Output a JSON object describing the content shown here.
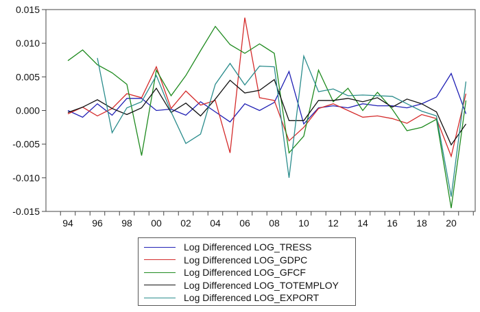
{
  "chart_data": {
    "type": "line",
    "x": [
      1994,
      1995,
      1996,
      1997,
      1998,
      1999,
      2000,
      2001,
      2002,
      2003,
      2004,
      2005,
      2006,
      2007,
      2008,
      2009,
      2010,
      2011,
      2012,
      2013,
      2014,
      2015,
      2016,
      2017,
      2018,
      2019,
      2020,
      2021
    ],
    "xtick_labels": [
      "94",
      "96",
      "98",
      "00",
      "02",
      "04",
      "06",
      "08",
      "10",
      "12",
      "14",
      "16",
      "18",
      "20"
    ],
    "xtick_years": [
      1994,
      1996,
      1998,
      2000,
      2002,
      2004,
      2006,
      2008,
      2010,
      2012,
      2014,
      2016,
      2018,
      2020
    ],
    "ylim": [
      -0.015,
      0.015
    ],
    "yticks": [
      0.015,
      0.01,
      0.005,
      0.0,
      -0.005,
      -0.01,
      -0.015
    ],
    "ytick_labels": [
      "0.015",
      "0.010",
      "0.005",
      "0.000",
      "-0.005",
      "-0.010",
      "-0.015"
    ],
    "grid": false,
    "legend_placement": "bottom",
    "series": [
      {
        "name": "Log Differenced LOG_TRESS",
        "color": "#1f1fb4",
        "values": [
          0.0,
          -0.001,
          0.001,
          -0.0007,
          0.0018,
          0.0018,
          0.0,
          0.0002,
          -0.0007,
          0.0013,
          -0.0002,
          -0.0017,
          0.001,
          0.0,
          0.0012,
          0.0058,
          -0.002,
          0.0004,
          0.0007,
          0.0004,
          0.001,
          0.0007,
          0.0007,
          0.0004,
          0.001,
          0.002,
          0.0055,
          -0.0005
        ]
      },
      {
        "name": "Log Differenced LOG_GDPC",
        "color": "#d42a2a",
        "values": [
          -0.0005,
          0.0005,
          -0.0008,
          0.0003,
          0.0025,
          0.0019,
          0.0065,
          0.0003,
          0.0029,
          0.0008,
          0.0015,
          -0.0063,
          0.0138,
          0.0019,
          0.0015,
          -0.0045,
          -0.0025,
          0.0003,
          0.001,
          0.0,
          -0.001,
          -0.0008,
          -0.0012,
          -0.0019,
          -0.0006,
          -0.0012,
          -0.0068,
          0.0025
        ]
      },
      {
        "name": "Log Differenced LOG_GFCF",
        "color": "#1e8a1e",
        "values": [
          0.0074,
          0.009,
          0.0068,
          0.0056,
          0.0039,
          -0.0067,
          0.006,
          0.0022,
          0.0052,
          0.0089,
          0.0125,
          0.0098,
          0.0085,
          0.0099,
          0.0085,
          -0.0063,
          -0.0038,
          0.006,
          0.0013,
          0.0033,
          0.0,
          0.0027,
          0.0002,
          -0.003,
          -0.0025,
          -0.0013,
          -0.0145,
          0.0015
        ]
      },
      {
        "name": "Log Differenced LOG_TOTEMPLOY",
        "color": "#111111",
        "values": [
          -0.0003,
          0.0005,
          0.0016,
          0.0003,
          -0.0006,
          0.0004,
          0.0033,
          -0.0003,
          0.0011,
          -0.0008,
          0.0017,
          0.0045,
          0.0026,
          0.003,
          0.0046,
          -0.0015,
          -0.0015,
          0.0015,
          0.0015,
          0.0018,
          0.0013,
          0.0019,
          0.0005,
          0.0017,
          0.001,
          -0.0002,
          -0.0051,
          -0.002
        ]
      },
      {
        "name": "Log Differenced LOG_EXPORT",
        "color": "#2a8c8c",
        "values": [
          null,
          null,
          0.0078,
          -0.0033,
          0.0004,
          0.0013,
          0.0052,
          -0.0002,
          -0.0049,
          -0.0035,
          0.0039,
          0.007,
          0.0038,
          0.0066,
          0.0065,
          -0.01,
          0.0081,
          0.0028,
          0.0032,
          0.0022,
          0.0023,
          0.0022,
          0.0021,
          0.001,
          -0.0001,
          -0.0008,
          -0.0128,
          0.0043
        ]
      }
    ]
  }
}
